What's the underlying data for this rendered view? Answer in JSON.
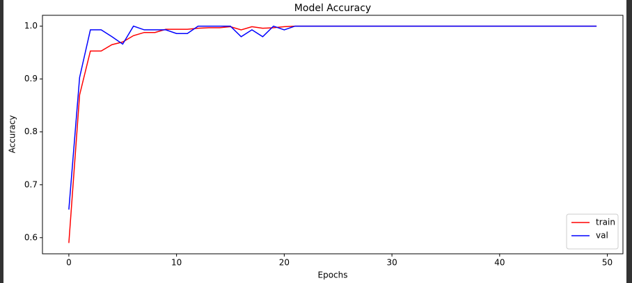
{
  "chart_data": {
    "type": "line",
    "title": "Model Accuracy",
    "x_label": "Epochs",
    "y_label": "Accuracy",
    "x": [
      0,
      1,
      2,
      3,
      4,
      5,
      6,
      7,
      8,
      9,
      10,
      11,
      12,
      13,
      14,
      15,
      16,
      17,
      18,
      19,
      20,
      21,
      22,
      23,
      24,
      25,
      26,
      27,
      28,
      29,
      30,
      31,
      32,
      33,
      34,
      35,
      36,
      37,
      38,
      39,
      40,
      41,
      42,
      43,
      44,
      45,
      46,
      47,
      48,
      49
    ],
    "series": [
      {
        "name": "train",
        "color": "#ff0000",
        "values": [
          0.59,
          0.87,
          0.953,
          0.953,
          0.965,
          0.97,
          0.982,
          0.988,
          0.988,
          0.994,
          0.994,
          0.994,
          0.996,
          0.997,
          0.997,
          0.999,
          0.993,
          0.999,
          0.996,
          0.997,
          0.999,
          1,
          1,
          1,
          1,
          1,
          1,
          1,
          1,
          1,
          1,
          1,
          1,
          1,
          1,
          1,
          1,
          1,
          1,
          1,
          1,
          1,
          1,
          1,
          1,
          1,
          1,
          1,
          1,
          1
        ]
      },
      {
        "name": "val",
        "color": "#0000ff",
        "values": [
          0.653,
          0.903,
          0.993,
          0.993,
          0.98,
          0.966,
          1,
          0.993,
          0.993,
          0.993,
          0.986,
          0.986,
          1,
          1,
          1,
          1,
          0.98,
          0.993,
          0.98,
          1,
          0.993,
          1,
          1,
          1,
          1,
          1,
          1,
          1,
          1,
          1,
          1,
          1,
          1,
          1,
          1,
          1,
          1,
          1,
          1,
          1,
          1,
          1,
          1,
          1,
          1,
          1,
          1,
          1,
          1,
          1
        ]
      }
    ],
    "xlim": [
      -2.45,
      51.45
    ],
    "xticks": [
      0,
      10,
      20,
      30,
      40,
      50
    ],
    "ylim": [
      0.5695,
      1.0205
    ],
    "yticks": [
      0.6,
      0.7,
      0.8,
      0.9,
      {
        "value": 1,
        "label": "1.0"
      }
    ],
    "grid": false,
    "legend": "lower right"
  }
}
